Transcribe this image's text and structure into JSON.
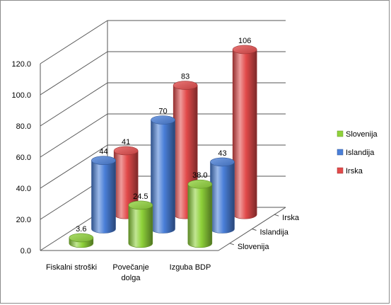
{
  "chart_data": {
    "type": "bar",
    "style": "3d-cylinder",
    "categories": [
      "Fiskalni stroški",
      "Povečanje dolga",
      "Izguba BDP"
    ],
    "depth_labels": [
      "Slovenija",
      "Islandija",
      "Irska"
    ],
    "series": [
      {
        "name": "Slovenija",
        "values": [
          3.6,
          24.5,
          38.0
        ],
        "labels": [
          "3.6",
          "24.5",
          "38.0"
        ],
        "color": "#8fd23a"
      },
      {
        "name": "Islandija",
        "values": [
          44,
          70,
          43
        ],
        "labels": [
          "44",
          "70",
          "43"
        ],
        "color": "#4a7fd8"
      },
      {
        "name": "Irska",
        "values": [
          41,
          83,
          106
        ],
        "labels": [
          "41",
          "83",
          "106"
        ],
        "color": "#e24a4a"
      }
    ],
    "ylim": [
      0,
      120
    ],
    "yticks": [
      "0.0",
      "20.0",
      "40.0",
      "60.0",
      "80.0",
      "100.0",
      "120.0"
    ],
    "grid": true,
    "legend_position": "right"
  }
}
